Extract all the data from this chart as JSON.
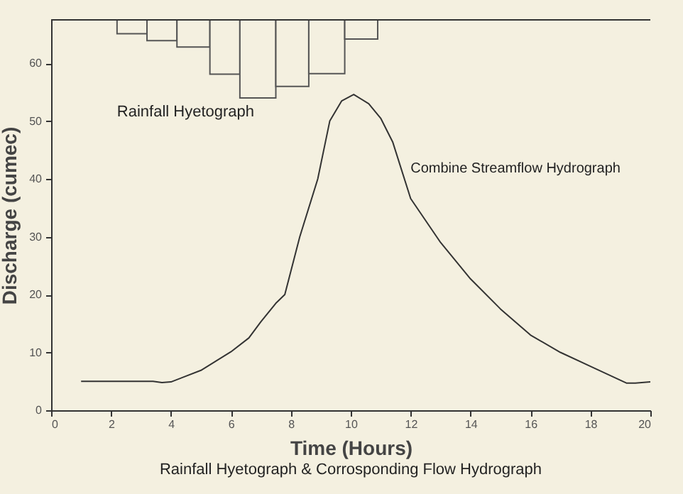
{
  "chart_data": {
    "type": "line",
    "title": "Rainfall Hyetograph & Corrosponding Flow Hydrograph",
    "xlabel": "Time (Hours)",
    "ylabel": "Discharge (cumec)",
    "xlim": [
      0,
      20
    ],
    "xticks": [
      0,
      2,
      4,
      6,
      8,
      10,
      12,
      14,
      16,
      18,
      20
    ],
    "ylim": [
      0,
      67.5
    ],
    "yticks": [
      0,
      10,
      20,
      30,
      40,
      50,
      60
    ],
    "grid": false,
    "series": [
      {
        "name": "Rainfall Hyetograph",
        "type": "histogram",
        "color": "#555555",
        "bins": [
          2.2,
          3.2,
          4.2,
          5.3,
          6.3,
          7.5,
          8.6,
          9.8,
          10.9
        ],
        "base": [
          65.1,
          63.9,
          62.8,
          58.1,
          54.0,
          56.0,
          58.2,
          64.2
        ],
        "values": [
          2.4,
          3.6,
          4.7,
          9.4,
          13.5,
          11.5,
          9.3,
          3.3
        ]
      },
      {
        "name": "Combine Streamflow Hydrograph",
        "color": "#333333",
        "x": [
          1,
          3.4,
          3.7,
          4,
          5,
          6,
          6.6,
          7,
          7.5,
          7.8,
          8.3,
          8.9,
          9.3,
          9.7,
          10.1,
          10.6,
          11,
          11.4,
          12,
          13,
          14,
          15,
          16,
          17,
          18,
          19.2,
          19.5,
          20
        ],
        "values": [
          5,
          5,
          4.8,
          4.9,
          6.9,
          10.1,
          12.5,
          15.3,
          18.5,
          20,
          30,
          40,
          50,
          53.5,
          54.6,
          53,
          50.5,
          46.4,
          36.6,
          29,
          22.7,
          17.5,
          13,
          10,
          7.6,
          4.7,
          4.7,
          4.9
        ]
      }
    ]
  }
}
